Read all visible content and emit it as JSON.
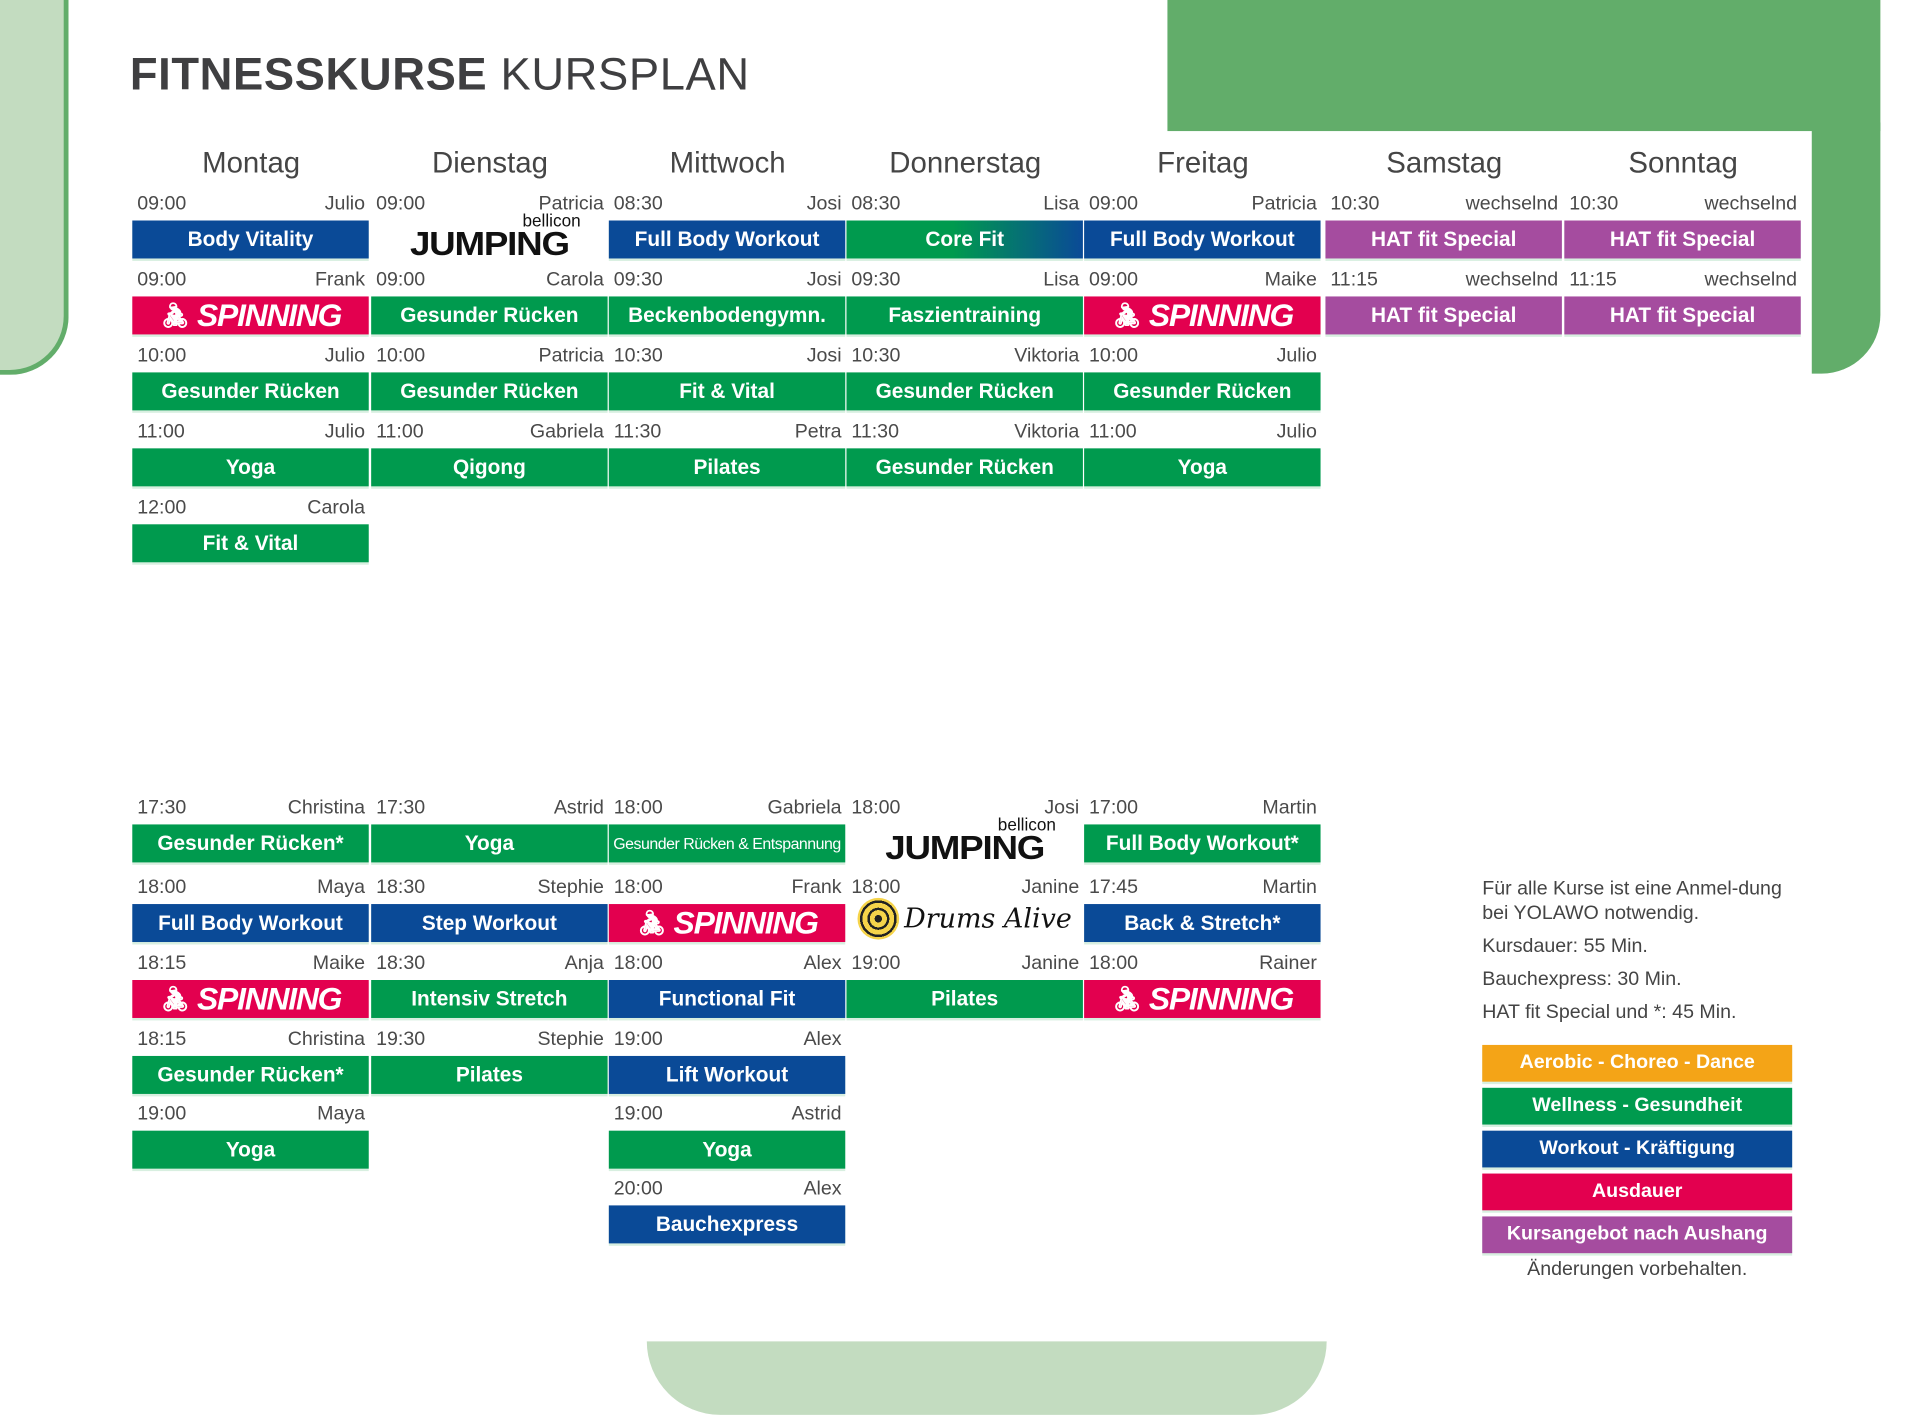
{
  "title": {
    "bold": "FITNESSKURSE",
    "light": "KURSPLAN"
  },
  "colors": {
    "workout": "#0a4a97",
    "wellness": "#009a4e",
    "ausdauer": "#e3004f",
    "special": "#a54c9f",
    "aerobic": "#f4a417",
    "decor": "#62ad6a"
  },
  "days": [
    {
      "name": "Montag",
      "morning": [
        {
          "time": "09:00",
          "trainer": "Julio",
          "course": "Body Vitality",
          "category": "workout"
        },
        {
          "time": "09:00",
          "trainer": "Frank",
          "course": "SPINNING",
          "category": "ausdauer",
          "logo": "spinning"
        },
        {
          "time": "10:00",
          "trainer": "Julio",
          "course": "Gesunder Rücken",
          "category": "wellness"
        },
        {
          "time": "11:00",
          "trainer": "Julio",
          "course": "Yoga",
          "category": "wellness"
        },
        {
          "time": "12:00",
          "trainer": "Carola",
          "course": "Fit & Vital",
          "category": "wellness"
        }
      ],
      "evening": [
        {
          "time": "17:30",
          "trainer": "Christina",
          "course": "Gesunder Rücken*",
          "category": "wellness"
        },
        {
          "time": "18:00",
          "trainer": "Maya",
          "course": "Full Body Workout",
          "category": "workout"
        },
        {
          "time": "18:15",
          "trainer": "Maike",
          "course": "SPINNING",
          "category": "ausdauer",
          "logo": "spinning"
        },
        {
          "time": "18:15",
          "trainer": "Christina",
          "course": "Gesunder Rücken*",
          "category": "wellness"
        },
        {
          "time": "19:00",
          "trainer": "Maya",
          "course": "Yoga",
          "category": "wellness"
        }
      ]
    },
    {
      "name": "Dienstag",
      "morning": [
        {
          "time": "09:00",
          "trainer": "Patricia",
          "course": "JUMPING",
          "brand": "bellicon",
          "category": "aerobic",
          "logo": "jumping"
        },
        {
          "time": "09:00",
          "trainer": "Carola",
          "course": "Gesunder Rücken",
          "category": "wellness"
        },
        {
          "time": "10:00",
          "trainer": "Patricia",
          "course": "Gesunder Rücken",
          "category": "wellness"
        },
        {
          "time": "11:00",
          "trainer": "Gabriela",
          "course": "Qigong",
          "category": "wellness"
        }
      ],
      "evening": [
        {
          "time": "17:30",
          "trainer": "Astrid",
          "course": "Yoga",
          "category": "wellness"
        },
        {
          "time": "18:30",
          "trainer": "Stephie",
          "course": "Step Workout",
          "category": "workout"
        },
        {
          "time": "18:30",
          "trainer": "Anja",
          "course": "Intensiv Stretch",
          "category": "wellness"
        },
        {
          "time": "19:30",
          "trainer": "Stephie",
          "course": "Pilates",
          "category": "wellness"
        }
      ]
    },
    {
      "name": "Mittwoch",
      "morning": [
        {
          "time": "08:30",
          "trainer": "Josi",
          "course": "Full Body Workout",
          "category": "workout"
        },
        {
          "time": "09:30",
          "trainer": "Josi",
          "course": "Beckenbodengymn.",
          "category": "wellness"
        },
        {
          "time": "10:30",
          "trainer": "Josi",
          "course": "Fit & Vital",
          "category": "wellness"
        },
        {
          "time": "11:30",
          "trainer": "Petra",
          "course": "Pilates",
          "category": "wellness"
        }
      ],
      "evening": [
        {
          "time": "18:00",
          "trainer": "Gabriela",
          "course": "Gesunder Rücken & Entspannung",
          "category": "wellness",
          "small": true
        },
        {
          "time": "18:00",
          "trainer": "Frank",
          "course": "SPINNING",
          "category": "ausdauer",
          "logo": "spinning"
        },
        {
          "time": "18:00",
          "trainer": "Alex",
          "course": "Functional Fit",
          "category": "workout"
        },
        {
          "time": "19:00",
          "trainer": "Alex",
          "course": "Lift Workout",
          "category": "workout"
        },
        {
          "time": "19:00",
          "trainer": "Astrid",
          "course": "Yoga",
          "category": "wellness"
        },
        {
          "time": "20:00",
          "trainer": "Alex",
          "course": "Bauchexpress",
          "category": "workout"
        }
      ]
    },
    {
      "name": "Donnerstag",
      "morning": [
        {
          "time": "08:30",
          "trainer": "Lisa",
          "course": "Core Fit",
          "category": "mixed"
        },
        {
          "time": "09:30",
          "trainer": "Lisa",
          "course": "Faszientraining",
          "category": "wellness"
        },
        {
          "time": "10:30",
          "trainer": "Viktoria",
          "course": "Gesunder Rücken",
          "category": "wellness"
        },
        {
          "time": "11:30",
          "trainer": "Viktoria",
          "course": "Gesunder Rücken",
          "category": "wellness"
        }
      ],
      "evening": [
        {
          "time": "18:00",
          "trainer": "Josi",
          "course": "JUMPING",
          "brand": "bellicon",
          "category": "aerobic",
          "logo": "jumping"
        },
        {
          "time": "18:00",
          "trainer": "Janine",
          "course": "Drums Alive",
          "category": "aerobic",
          "logo": "drums"
        },
        {
          "time": "19:00",
          "trainer": "Janine",
          "course": "Pilates",
          "category": "wellness"
        }
      ]
    },
    {
      "name": "Freitag",
      "morning": [
        {
          "time": "09:00",
          "trainer": "Patricia",
          "course": "Full Body Workout",
          "category": "workout"
        },
        {
          "time": "09:00",
          "trainer": "Maike",
          "course": "SPINNING",
          "category": "ausdauer",
          "logo": "spinning"
        },
        {
          "time": "10:00",
          "trainer": "Julio",
          "course": "Gesunder Rücken",
          "category": "wellness"
        },
        {
          "time": "11:00",
          "trainer": "Julio",
          "course": "Yoga",
          "category": "wellness"
        }
      ],
      "evening": [
        {
          "time": "17:00",
          "trainer": "Martin",
          "course": "Full Body Workout*",
          "category": "wellness"
        },
        {
          "time": "17:45",
          "trainer": "Martin",
          "course": "Back & Stretch*",
          "category": "workout"
        },
        {
          "time": "18:00",
          "trainer": "Rainer",
          "course": "SPINNING",
          "category": "ausdauer",
          "logo": "spinning"
        }
      ]
    },
    {
      "name": "Samstag",
      "morning": [
        {
          "time": "10:30",
          "trainer": "wechselnd",
          "course": "HAT fit Special",
          "category": "special"
        },
        {
          "time": "11:15",
          "trainer": "wechselnd",
          "course": "HAT fit Special",
          "category": "special"
        }
      ],
      "evening": []
    },
    {
      "name": "Sonntag",
      "morning": [
        {
          "time": "10:30",
          "trainer": "wechselnd",
          "course": "HAT fit Special",
          "category": "special"
        },
        {
          "time": "11:15",
          "trainer": "wechselnd",
          "course": "HAT fit Special",
          "category": "special"
        }
      ],
      "evening": []
    }
  ],
  "info": [
    "Für alle Kurse ist eine Anmel-dung bei YOLAWO notwendig.",
    "Kursdauer: 55 Min.",
    "Bauchexpress: 30 Min.",
    "HAT fit Special und *: 45 Min."
  ],
  "legend": [
    {
      "label": "Aerobic - Choreo - Dance",
      "category": "aerobic"
    },
    {
      "label": "Wellness - Gesundheit",
      "category": "wellness"
    },
    {
      "label": "Workout - Kräftigung",
      "category": "workout"
    },
    {
      "label": "Ausdauer",
      "category": "ausdauer"
    },
    {
      "label": "Kursangebot nach Aushang",
      "category": "special"
    }
  ],
  "note": "Änderungen vorbehalten."
}
